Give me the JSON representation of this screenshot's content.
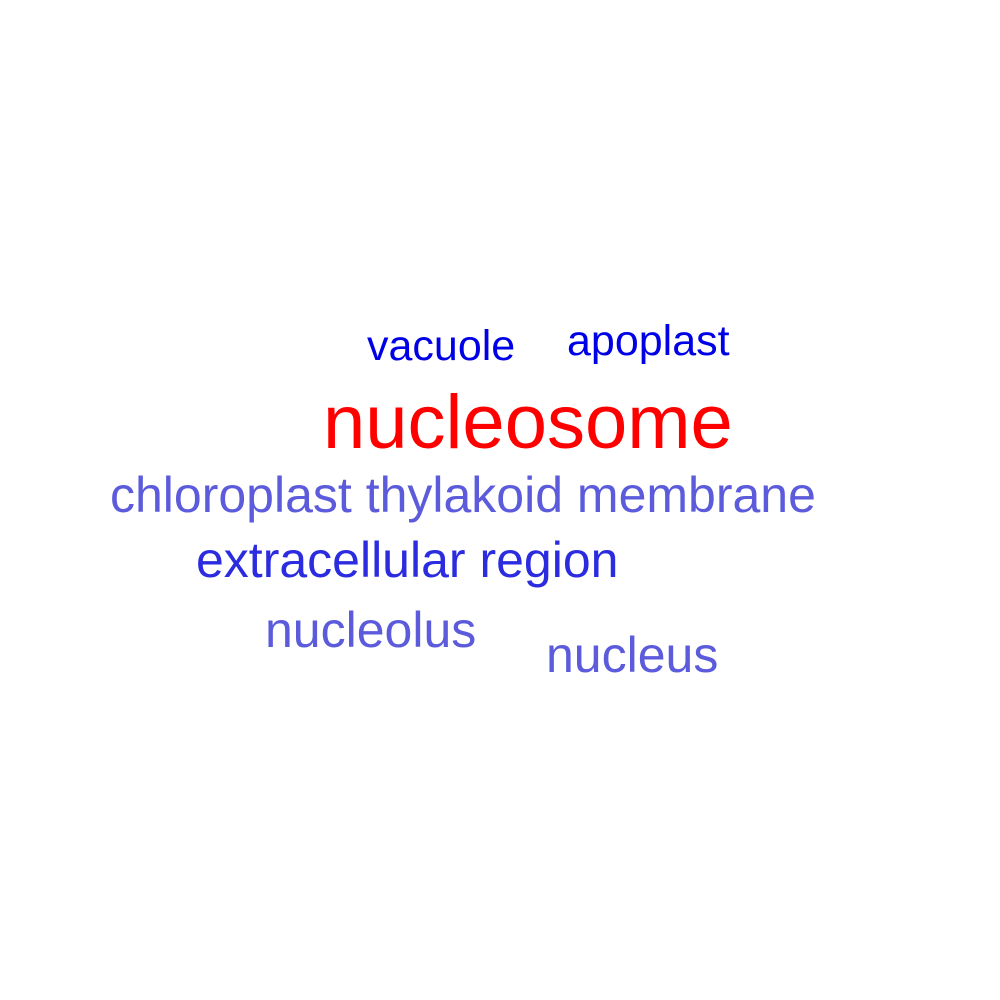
{
  "words": [
    {
      "text": "vacuole",
      "color": "#0000e6"
    },
    {
      "text": "apoplast",
      "color": "#0000e6"
    },
    {
      "text": "nucleosome",
      "color": "#ff0000"
    },
    {
      "text": "chloroplast thylakoid membrane",
      "color": "#5b5bdc"
    },
    {
      "text": "extracellular region",
      "color": "#2b2be0"
    },
    {
      "text": "nucleolus",
      "color": "#5b5bdc"
    },
    {
      "text": "nucleus",
      "color": "#5b5bdc"
    }
  ]
}
